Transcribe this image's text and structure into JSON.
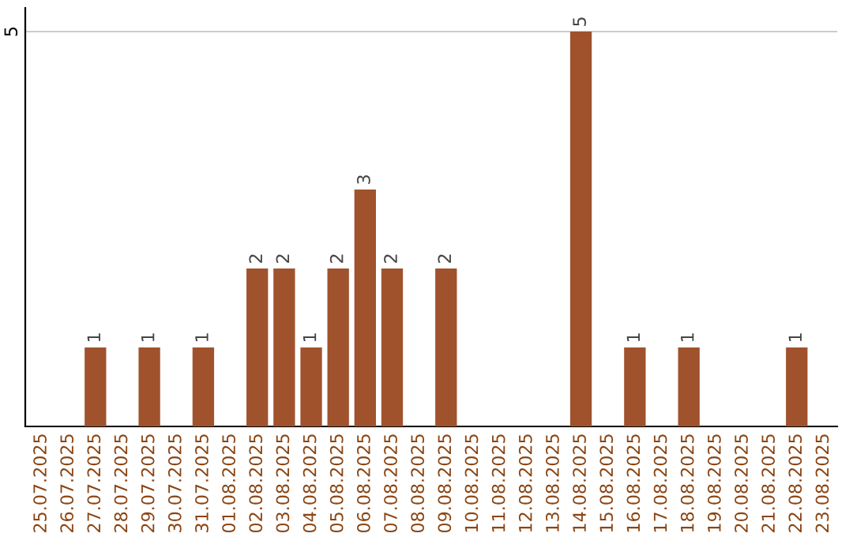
{
  "chart_data": {
    "type": "bar",
    "categories": [
      "25.07.2025",
      "26.07.2025",
      "27.07.2025",
      "28.07.2025",
      "29.07.2025",
      "30.07.2025",
      "31.07.2025",
      "01.08.2025",
      "02.08.2025",
      "03.08.2025",
      "04.08.2025",
      "05.08.2025",
      "06.08.2025",
      "07.08.2025",
      "08.08.2025",
      "09.08.2025",
      "10.08.2025",
      "11.08.2025",
      "12.08.2025",
      "13.08.2025",
      "14.08.2025",
      "15.08.2025",
      "16.08.2025",
      "17.08.2025",
      "18.08.2025",
      "19.08.2025",
      "20.08.2025",
      "21.08.2025",
      "22.08.2025",
      "23.08.2025"
    ],
    "values": [
      0,
      0,
      1,
      0,
      1,
      0,
      1,
      0,
      2,
      2,
      1,
      2,
      3,
      2,
      0,
      2,
      0,
      0,
      0,
      0,
      5,
      0,
      1,
      0,
      1,
      0,
      0,
      0,
      1,
      0
    ],
    "value_labels": [
      null,
      null,
      "1",
      null,
      "1",
      null,
      "1",
      null,
      "2",
      "2",
      "1",
      "2",
      "3",
      "2",
      null,
      "2",
      null,
      null,
      null,
      null,
      "5",
      null,
      "1",
      null,
      "1",
      null,
      null,
      null,
      "1",
      null
    ],
    "color": "#a0522d",
    "ylim": [
      0,
      5.3
    ],
    "yticks": [
      5
    ],
    "grid": "y",
    "legend": false
  }
}
